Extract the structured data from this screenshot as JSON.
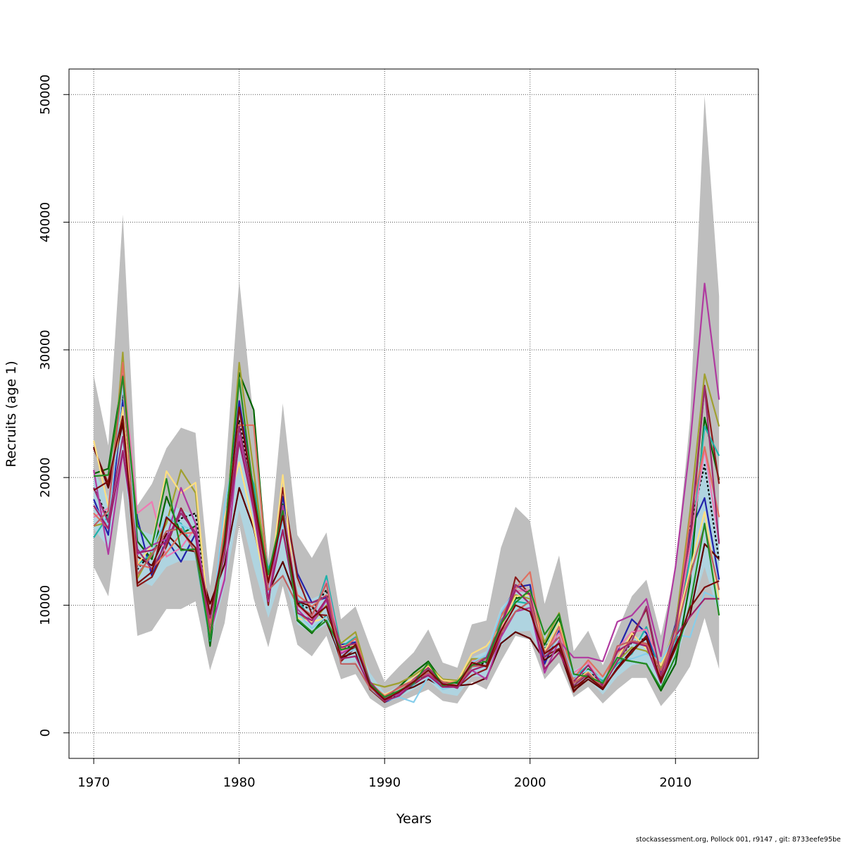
{
  "chart_data": {
    "type": "line",
    "title": "",
    "xlabel": "Years",
    "ylabel": "Recruits (age 1)",
    "xlim": [
      1968.3,
      2015.7
    ],
    "ylim": [
      -2000,
      52000
    ],
    "x_ticks": [
      1970,
      1980,
      1990,
      2000,
      2010
    ],
    "y_ticks": [
      0,
      10000,
      20000,
      30000,
      40000,
      50000
    ],
    "grid": true,
    "legend": "none",
    "x": [
      1970,
      1971,
      1972,
      1973,
      1974,
      1975,
      1976,
      1977,
      1978,
      1979,
      1980,
      1981,
      1982,
      1983,
      1984,
      1985,
      1986,
      1987,
      1988,
      1989,
      1990,
      1991,
      1992,
      1993,
      1994,
      1995,
      1996,
      1997,
      1998,
      1999,
      2000,
      2001,
      2002,
      2003,
      2004,
      2005,
      2006,
      2007,
      2008,
      2009,
      2010,
      2011,
      2012,
      2013
    ],
    "ci_band": {
      "color": "#bebebe",
      "upper": [
        28000,
        22500,
        40600,
        17800,
        19500,
        22300,
        23900,
        23500,
        11500,
        19500,
        35500,
        24500,
        13500,
        25800,
        15500,
        13700,
        15700,
        8900,
        9900,
        6800,
        4000,
        5200,
        6300,
        8100,
        5500,
        5100,
        8500,
        8800,
        14500,
        17700,
        16600,
        10100,
        13900,
        6400,
        8000,
        5300,
        8000,
        10700,
        12000,
        7600,
        12800,
        24500,
        49900,
        34200
      ],
      "lower": [
        13000,
        10700,
        19000,
        7600,
        8000,
        9700,
        9700,
        10300,
        4900,
        8600,
        16300,
        10500,
        6700,
        11500,
        6900,
        6000,
        7600,
        4200,
        4600,
        2700,
        1900,
        2400,
        2900,
        3400,
        2500,
        2300,
        4000,
        3400,
        5600,
        7600,
        7300,
        4200,
        5500,
        2800,
        3600,
        2300,
        3400,
        4300,
        4300,
        2100,
        3400,
        5200,
        9000,
        5000
      ]
    },
    "ci_band_inner": {
      "color": "#add8e6",
      "upper": [
        20500,
        18500,
        27500,
        16000,
        15500,
        18000,
        17500,
        17000,
        9500,
        15500,
        24000,
        18000,
        11800,
        17500,
        11500,
        10500,
        11000,
        7200,
        7400,
        4700,
        3100,
        3700,
        4400,
        5400,
        4100,
        3900,
        5900,
        6400,
        9800,
        11000,
        11000,
        7500,
        9000,
        4900,
        5500,
        4100,
        5900,
        7200,
        7900,
        5000,
        8500,
        15000,
        22000,
        16500
      ],
      "lower": [
        16000,
        14500,
        21500,
        12000,
        11500,
        13000,
        13500,
        13500,
        6900,
        11500,
        17500,
        13000,
        9000,
        12500,
        8500,
        7800,
        8500,
        5300,
        5600,
        3300,
        2300,
        2800,
        3400,
        4100,
        3100,
        2900,
        4400,
        4400,
        6800,
        7900,
        8000,
        5500,
        6500,
        3600,
        4200,
        3000,
        4400,
        5300,
        5500,
        3400,
        5600,
        9200,
        13000,
        9200
      ]
    },
    "series": [
      {
        "color": "#000000",
        "dash": "3,3",
        "values": [
          19200,
          16800,
          26500,
          12800,
          14200,
          15500,
          16800,
          17200,
          8500,
          15000,
          24500,
          18500,
          10800,
          17500,
          10200,
          9600,
          11200,
          6500,
          6900,
          3900,
          2600,
          3000,
          3800,
          4900,
          3800,
          3600,
          5200,
          5500,
          8600,
          10600,
          10900,
          6600,
          8300,
          4100,
          4900,
          3800,
          5600,
          7100,
          7400,
          4400,
          8000,
          16000,
          21000,
          13500
        ]
      },
      {
        "color": "#2222aa",
        "values": [
          18300,
          15500,
          26000,
          16800,
          12300,
          15200,
          13400,
          15600,
          8200,
          14800,
          26000,
          19000,
          11200,
          18500,
          12500,
          10200,
          10600,
          6900,
          7100,
          3800,
          2400,
          2900,
          3900,
          5000,
          3900,
          3700,
          5400,
          5200,
          9200,
          11400,
          11600,
          5400,
          8000,
          4000,
          4800,
          3700,
          6400,
          8900,
          7800,
          4700,
          8500,
          15800,
          18400,
          12000
        ]
      },
      {
        "color": "#006400",
        "values": [
          20300,
          20700,
          28000,
          15000,
          13600,
          18500,
          15600,
          16200,
          6800,
          15300,
          28200,
          25300,
          11500,
          17900,
          8800,
          7800,
          9200,
          6300,
          6700,
          3500,
          2700,
          3600,
          4700,
          5600,
          4000,
          3900,
          5800,
          5600,
          8600,
          10500,
          10900,
          6900,
          9000,
          3600,
          5000,
          4100,
          5800,
          5600,
          5400,
          3300,
          5400,
          11800,
          24700,
          19800
        ]
      },
      {
        "color": "#8b1a1a",
        "values": [
          22300,
          19500,
          24200,
          11500,
          12200,
          14600,
          17600,
          15500,
          9300,
          14500,
          23600,
          18000,
          10000,
          19200,
          12200,
          9300,
          9200,
          5600,
          6700,
          3400,
          2400,
          3300,
          3800,
          4600,
          3800,
          3600,
          4500,
          5000,
          7600,
          12200,
          10800,
          6000,
          6600,
          3200,
          4500,
          3500,
          5800,
          7600,
          9700,
          4300,
          6700,
          14700,
          27200,
          19500
        ]
      },
      {
        "color": "#20b2aa",
        "values": [
          15300,
          17000,
          27500,
          13200,
          14000,
          16800,
          16400,
          14000,
          7200,
          16000,
          22800,
          19500,
          12800,
          15800,
          10500,
          8700,
          12300,
          6700,
          7500,
          4000,
          2500,
          2900,
          3800,
          5000,
          3700,
          3700,
          5700,
          5900,
          8800,
          10300,
          10100,
          6500,
          8400,
          4300,
          5300,
          4000,
          5400,
          6200,
          8300,
          4600,
          7000,
          13700,
          24000,
          21700
        ]
      },
      {
        "color": "#ee7ab3",
        "values": [
          16900,
          17600,
          28800,
          17200,
          18100,
          13800,
          14500,
          16100,
          7600,
          12200,
          23200,
          18200,
          11200,
          17600,
          10000,
          8900,
          11900,
          6300,
          6900,
          4000,
          2800,
          3100,
          4100,
          5200,
          4000,
          3700,
          5700,
          5700,
          8000,
          11100,
          11200,
          6300,
          7800,
          4700,
          5500,
          3700,
          6600,
          7900,
          8100,
          5200,
          7800,
          14500,
          22200,
          15000
        ]
      },
      {
        "color": "#a0a030",
        "values": [
          16200,
          16500,
          29800,
          12100,
          14200,
          16400,
          20600,
          18800,
          8000,
          14900,
          29000,
          20500,
          11800,
          17200,
          9400,
          8600,
          10000,
          7000,
          7900,
          3900,
          3600,
          3900,
          4500,
          5300,
          4200,
          4100,
          5800,
          5800,
          9100,
          10800,
          10500,
          7100,
          9400,
          3900,
          4600,
          3800,
          5600,
          6700,
          6400,
          5100,
          8300,
          17300,
          28100,
          24000
        ]
      },
      {
        "color": "#5c0000",
        "values": [
          22400,
          19200,
          24300,
          13800,
          13100,
          15600,
          14400,
          14200,
          10100,
          13200,
          19200,
          16000,
          11000,
          13400,
          10300,
          9900,
          8700,
          5900,
          6300,
          3500,
          2600,
          3200,
          3600,
          4200,
          3600,
          3700,
          3800,
          4300,
          7000,
          7900,
          7400,
          5700,
          6500,
          3300,
          4200,
          3400,
          5100,
          6500,
          7400,
          4100,
          6900,
          9200,
          14800,
          13600
        ]
      },
      {
        "color": "#ffdf80",
        "values": [
          22900,
          17700,
          25500,
          13200,
          14700,
          20500,
          18800,
          19600,
          7700,
          16800,
          21200,
          16200,
          10400,
          20200,
          9000,
          8700,
          9000,
          6800,
          6900,
          3600,
          3000,
          3500,
          4300,
          5200,
          4100,
          4000,
          6200,
          6800,
          8300,
          10700,
          10800,
          6400,
          8600,
          4000,
          4800,
          3600,
          5800,
          7800,
          6600,
          5300,
          8000,
          12800,
          17300,
          10400
        ]
      },
      {
        "color": "#e07060",
        "values": [
          17200,
          16000,
          29000,
          13200,
          12900,
          14100,
          15600,
          15700,
          8600,
          16100,
          24100,
          24100,
          11800,
          15700,
          10800,
          9900,
          10800,
          6500,
          7400,
          3900,
          2900,
          3500,
          4000,
          5100,
          3900,
          4000,
          5400,
          6100,
          9100,
          11300,
          12600,
          6100,
          8300,
          4300,
          5700,
          4400,
          6300,
          7200,
          6900,
          4500,
          7500,
          16800,
          22400,
          16900
        ]
      },
      {
        "color": "#87ceeb",
        "values": [
          17800,
          16300,
          27200,
          14300,
          14200,
          17000,
          16300,
          15700,
          7400,
          17900,
          23500,
          18200,
          10900,
          16600,
          9400,
          8200,
          9100,
          6000,
          6600,
          3500,
          2500,
          2800,
          2400,
          4400,
          3400,
          3700,
          5500,
          6100,
          9400,
          11200,
          10000,
          6100,
          7500,
          4400,
          4900,
          4200,
          5800,
          5800,
          6200,
          5600,
          7700,
          7500,
          11000,
          10500
        ]
      },
      {
        "color": "#9b2c6f",
        "values": [
          19200,
          16500,
          23200,
          14400,
          12800,
          14900,
          17200,
          15700,
          9000,
          14000,
          24000,
          18000,
          11700,
          17600,
          10300,
          10200,
          10700,
          6700,
          7000,
          4000,
          2700,
          3100,
          4200,
          5100,
          3900,
          3500,
          5200,
          5900,
          8500,
          11600,
          10800,
          5900,
          7100,
          3700,
          4600,
          3600,
          5600,
          7200,
          9900,
          4500,
          8200,
          15400,
          27100,
          14800
        ]
      },
      {
        "color": "#b03aa0",
        "values": [
          20600,
          14000,
          22000,
          14000,
          14700,
          15200,
          19200,
          16400,
          7800,
          12000,
          23300,
          17300,
          10300,
          17800,
          9700,
          8500,
          10400,
          6200,
          6800,
          3700,
          2800,
          3000,
          4200,
          4600,
          3600,
          3600,
          4900,
          4200,
          7500,
          9500,
          9800,
          4700,
          7200,
          5900,
          5900,
          5600,
          8700,
          9200,
          10500,
          6000,
          13000,
          22500,
          35200,
          26100
        ]
      },
      {
        "color": "#a0206b",
        "values": [
          17800,
          16000,
          22100,
          14100,
          14300,
          15000,
          17500,
          15400,
          7900,
          14700,
          22800,
          17600,
          10500,
          15900,
          9400,
          8800,
          10500,
          5800,
          6000,
          3600,
          2500,
          2900,
          3900,
          4500,
          3600,
          3600,
          4900,
          5300,
          8400,
          11200,
          10100,
          5000,
          6300,
          4000,
          5300,
          3700,
          6400,
          7100,
          6800,
          3900,
          7600,
          9100,
          10500,
          10500
        ]
      },
      {
        "color": "#c06060",
        "values": [
          16200,
          17400,
          28000,
          12400,
          13900,
          15800,
          16000,
          14100,
          7700,
          14800,
          25400,
          18800,
          11200,
          12300,
          10000,
          9200,
          11700,
          5400,
          5400,
          3500,
          2800,
          3600,
          4100,
          4700,
          4000,
          3700,
          5200,
          5300,
          7800,
          9500,
          10300,
          6300,
          7500,
          3900,
          4700,
          3500,
          6800,
          7200,
          7000,
          4900,
          7600,
          12300,
          16200,
          11200
        ]
      },
      {
        "color": "#228b22",
        "values": [
          20100,
          20200,
          27900,
          16200,
          14600,
          19900,
          14300,
          14400,
          7300,
          15300,
          27700,
          18700,
          12400,
          17400,
          8900,
          7900,
          8800,
          6500,
          6800,
          3800,
          2800,
          3300,
          3900,
          5500,
          3700,
          4000,
          5300,
          5600,
          8500,
          10200,
          11200,
          7700,
          9300,
          4600,
          4400,
          3900,
          5900,
          5600,
          5400,
          3500,
          6000,
          10000,
          16400,
          9200
        ]
      },
      {
        "color": "#7a0a0a",
        "values": [
          19000,
          19700,
          24800,
          11700,
          12600,
          16900,
          15800,
          14500,
          9300,
          14800,
          25500,
          18400,
          11800,
          17000,
          10100,
          9000,
          9900,
          5900,
          6900,
          3700,
          2600,
          3200,
          4000,
          4900,
          3800,
          3700,
          5500,
          5200,
          8000,
          10000,
          9500,
          6200,
          7000,
          3500,
          4400,
          3500,
          5000,
          6300,
          7600,
          4000,
          6600,
          9800,
          11400,
          11900
        ]
      }
    ]
  },
  "footer": "stockassessment.org, Pollock  001, r9147 , git: 8733eefe95be"
}
